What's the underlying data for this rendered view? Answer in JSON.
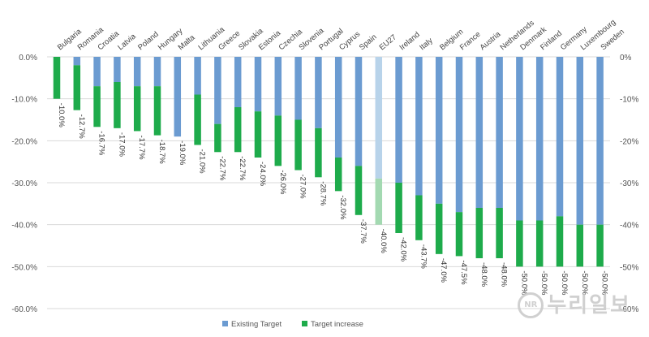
{
  "chart_data": {
    "type": "bar",
    "stacked": true,
    "categories": [
      "Bulgaria",
      "Romania",
      "Croatia",
      "Latvia",
      "Poland",
      "Hungary",
      "Malta",
      "Lithuania",
      "Greece",
      "Slovakia",
      "Estonia",
      "Czechia",
      "Slovenia",
      "Portugal",
      "Cyprus",
      "Spain",
      "EU27",
      "Ireland",
      "Italy",
      "Belgium",
      "France",
      "Austria",
      "Netherlands",
      "Denmark",
      "Finland",
      "Germany",
      "Luxembourg",
      "Sweden"
    ],
    "series": [
      {
        "name": "Existing Target",
        "color": "#6b9bd1",
        "values": [
          0,
          -2,
          -7,
          -6,
          -7,
          -7,
          -19,
          -9,
          -16,
          -12,
          -13,
          -14,
          -15,
          -17,
          -24,
          -26,
          -29,
          -30,
          -33,
          -35,
          -37,
          -36,
          -36,
          -39,
          -39,
          -38,
          -40,
          -40
        ]
      },
      {
        "name": "Target increase",
        "color": "#1eab4b",
        "values": [
          -10,
          -10.7,
          -9.7,
          -11,
          -10.7,
          -11.7,
          0,
          -12,
          -6.7,
          -10.7,
          -11,
          -12,
          -12,
          -11.7,
          -8,
          -11.7,
          -11,
          -12,
          -10.7,
          -12,
          -10.5,
          -12,
          -12,
          -11,
          -11,
          -12,
          -10,
          -10
        ]
      }
    ],
    "highlight_category": "EU27",
    "highlight_colors": {
      "Existing Target": "#b8d3ea",
      "Target increase": "#a3d9b1"
    },
    "totals_labels": [
      "-10.0%",
      "-12.7%",
      "-16.7%",
      "-17.0%",
      "-17.7%",
      "-18.7%",
      "-19.0%",
      "-21.0%",
      "-22.7%",
      "-22.7%",
      "-24.0%",
      "-26.0%",
      "-27.0%",
      "-28.7%",
      "-32.0%",
      "-37.7%",
      "-40.0%",
      "-42.0%",
      "-43.7%",
      "-47.0%",
      "-47.5%",
      "-48.0%",
      "-48.0%",
      "-50.0%",
      "-50.0%",
      "-50.0%",
      "-50.0%",
      "-50.0%"
    ],
    "ylim": [
      -60,
      0
    ],
    "yticks": [
      0,
      -10,
      -20,
      -30,
      -40,
      -50,
      -60
    ],
    "ytick_labels_left": [
      "0.0%",
      "-10.0%",
      "-20.0%",
      "-30.0%",
      "-40.0%",
      "-50.0%",
      "-60.0%"
    ],
    "ytick_labels_right": [
      "0%",
      "-10%",
      "-20%",
      "-30%",
      "-40%",
      "-50%",
      "-60%"
    ],
    "grid": true,
    "legend_position": "bottom",
    "title": "",
    "xlabel": "",
    "ylabel": ""
  },
  "watermark": {
    "logo": "NR",
    "text": "누리일보"
  }
}
